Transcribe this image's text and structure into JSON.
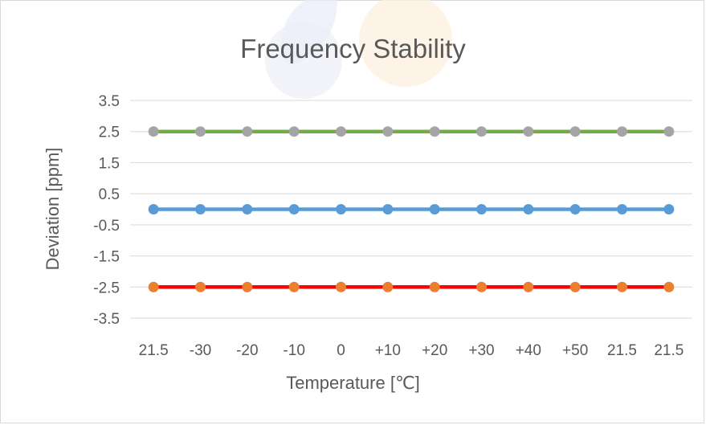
{
  "chart_data": {
    "type": "line",
    "title": "Frequency Stability",
    "xlabel": "Temperature [℃]",
    "ylabel": "Deviation [ppm]",
    "categories": [
      "21.5",
      "-30",
      "-20",
      "-10",
      "0",
      "+10",
      "+20",
      "+30",
      "+40",
      "+50",
      "21.5",
      "21.5"
    ],
    "y_ticks": [
      "3.5",
      "2.5",
      "1.5",
      "0.5",
      "-0.5",
      "-1.5",
      "-2.5",
      "-3.5"
    ],
    "ylim": [
      -3.5,
      3.5
    ],
    "grid": true,
    "legend": "none",
    "series": [
      {
        "color": "#70ad47",
        "marker_color": "#a5a5a5",
        "values": [
          2.5,
          2.5,
          2.5,
          2.5,
          2.5,
          2.5,
          2.5,
          2.5,
          2.5,
          2.5,
          2.5,
          2.5
        ]
      },
      {
        "color": "#5b9bd5",
        "marker_color": "#5b9bd5",
        "values": [
          0,
          0,
          0,
          0,
          0,
          0,
          0,
          0,
          0,
          0,
          0,
          0
        ]
      },
      {
        "color": "#ff0000",
        "marker_color": "#ed7d31",
        "values": [
          -2.5,
          -2.5,
          -2.5,
          -2.5,
          -2.5,
          -2.5,
          -2.5,
          -2.5,
          -2.5,
          -2.5,
          -2.5,
          -2.5
        ]
      }
    ]
  }
}
